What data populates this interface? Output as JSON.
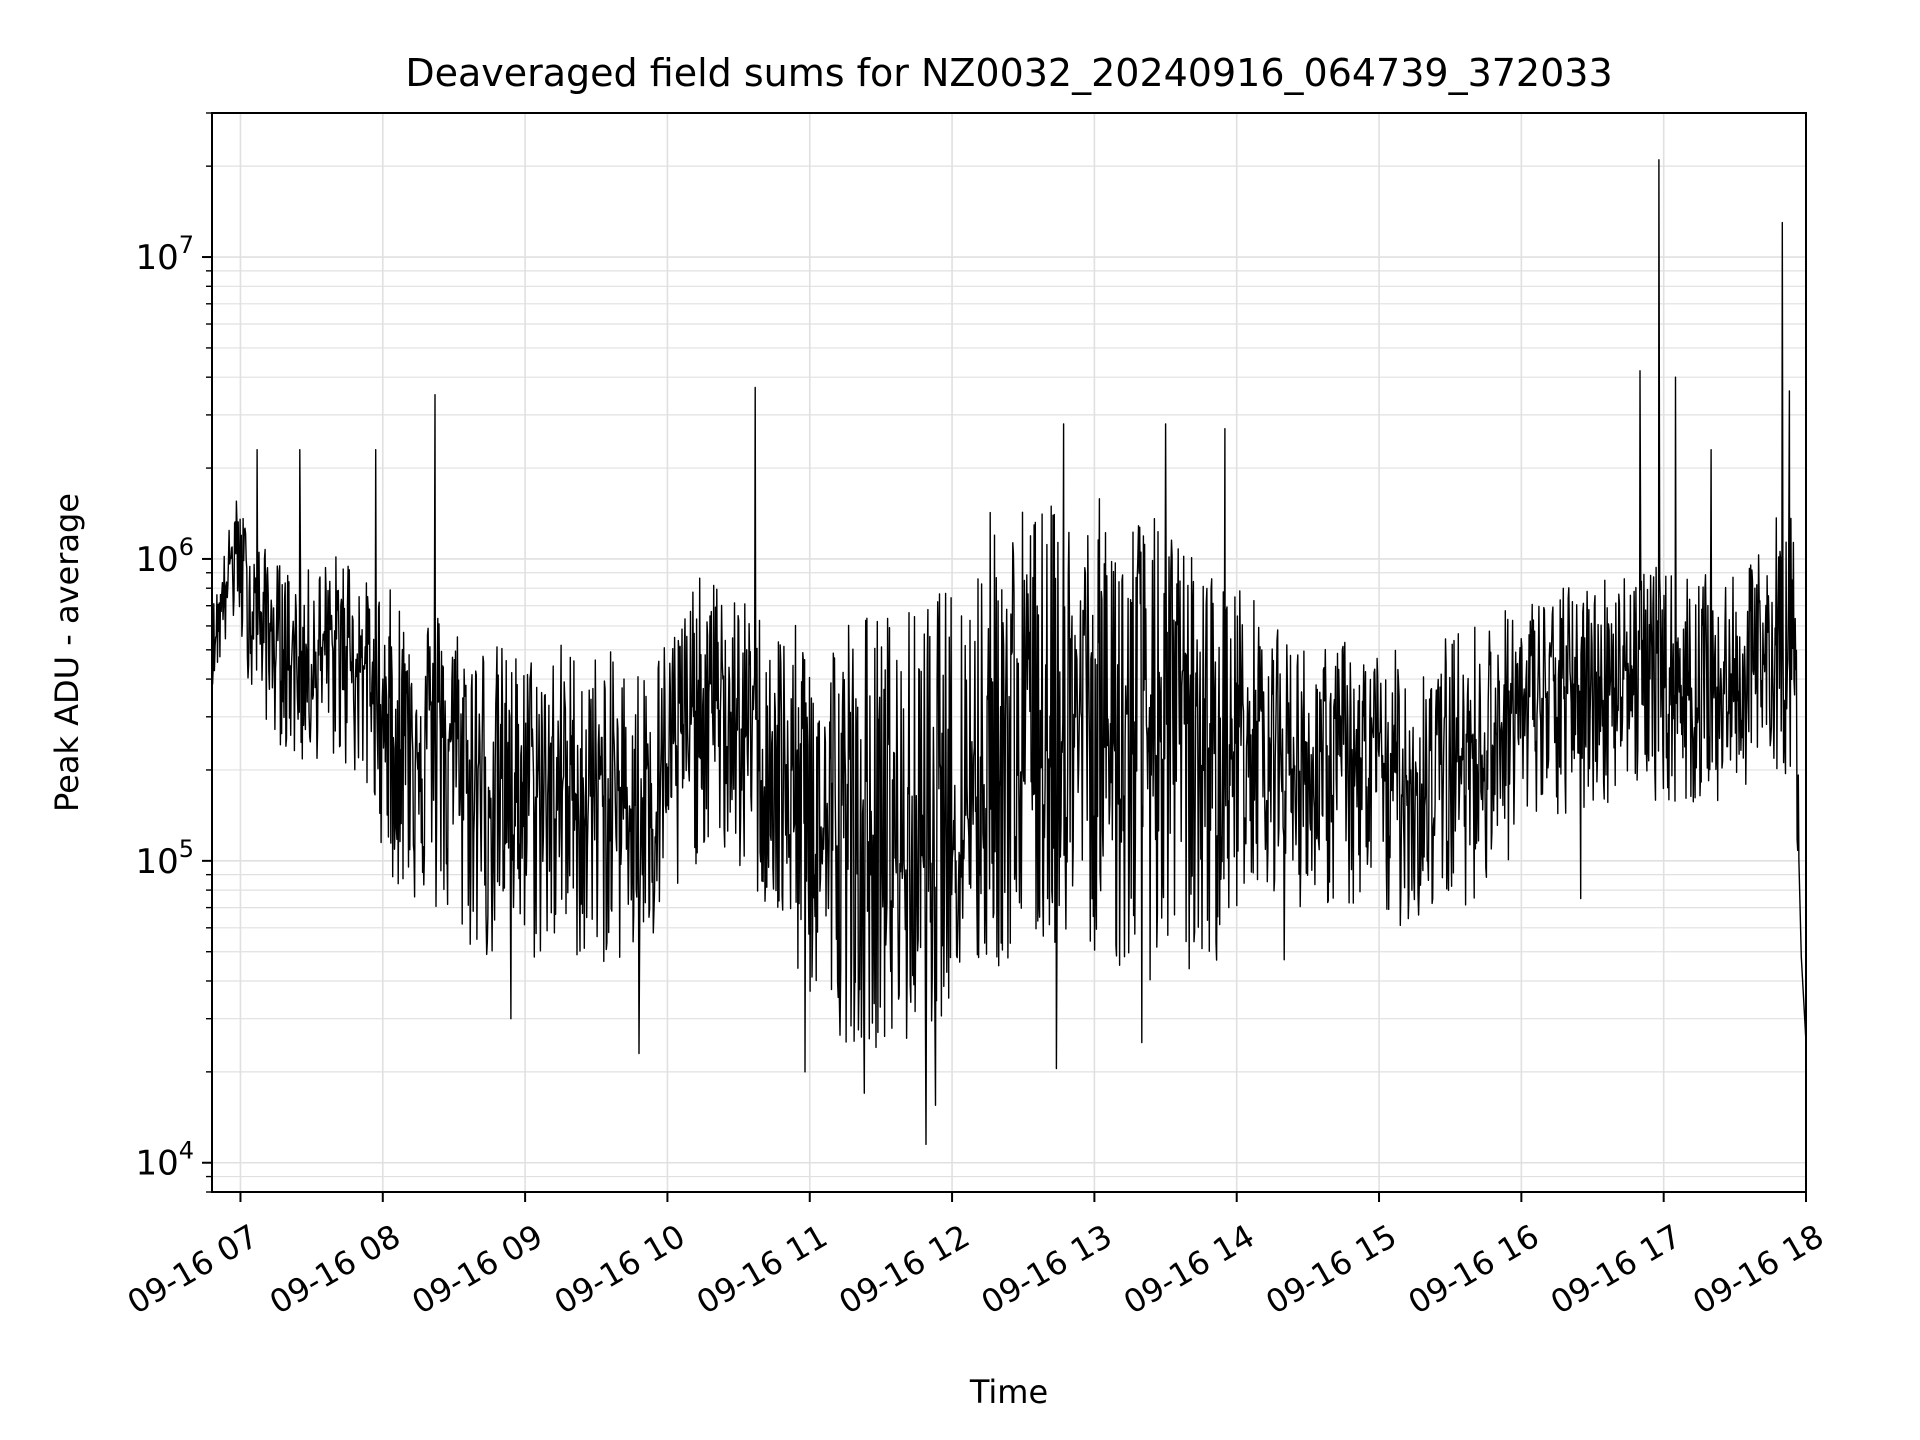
{
  "chart_data": {
    "type": "line",
    "title": "Deaveraged field sums for NZ0032_20240916_064739_372033",
    "xlabel": "Time",
    "ylabel": "Peak ADU - average",
    "yscale": "log",
    "ylim": [
      8000,
      30000000
    ],
    "xlim": [
      "2024-09-16 06:48",
      "2024-09-16 18:00"
    ],
    "grid": true,
    "legend": "none",
    "line_color": "#000000",
    "grid_color": "#e0e0e0",
    "x_ticks": [
      {
        "value": "2024-09-16 07:00",
        "label": "09-16 07"
      },
      {
        "value": "2024-09-16 08:00",
        "label": "09-16 08"
      },
      {
        "value": "2024-09-16 09:00",
        "label": "09-16 09"
      },
      {
        "value": "2024-09-16 10:00",
        "label": "09-16 10"
      },
      {
        "value": "2024-09-16 11:00",
        "label": "09-16 11"
      },
      {
        "value": "2024-09-16 12:00",
        "label": "09-16 12"
      },
      {
        "value": "2024-09-16 13:00",
        "label": "09-16 13"
      },
      {
        "value": "2024-09-16 14:00",
        "label": "09-16 14"
      },
      {
        "value": "2024-09-16 15:00",
        "label": "09-16 15"
      },
      {
        "value": "2024-09-16 16:00",
        "label": "09-16 16"
      },
      {
        "value": "2024-09-16 17:00",
        "label": "09-16 17"
      },
      {
        "value": "2024-09-16 18:00",
        "label": "09-16 18"
      }
    ],
    "y_ticks": [
      {
        "value": 10000,
        "base": "10",
        "exp": "4"
      },
      {
        "value": 100000,
        "base": "10",
        "exp": "5"
      },
      {
        "value": 1000000,
        "base": "10",
        "exp": "6"
      },
      {
        "value": 10000000,
        "base": "10",
        "exp": "7"
      }
    ],
    "series": [
      {
        "x": [
          "2024-09-16 06:48",
          "2024-09-16 06:58",
          "2024-09-16 07:05",
          "2024-09-16 07:15",
          "2024-09-16 07:25",
          "2024-09-16 07:35",
          "2024-09-16 07:45",
          "2024-09-16 07:55",
          "2024-09-16 08:05",
          "2024-09-16 08:15",
          "2024-09-16 08:25",
          "2024-09-16 08:35",
          "2024-09-16 08:45",
          "2024-09-16 08:55",
          "2024-09-16 09:05",
          "2024-09-16 09:15",
          "2024-09-16 09:25",
          "2024-09-16 09:35",
          "2024-09-16 09:45",
          "2024-09-16 09:55",
          "2024-09-16 10:05",
          "2024-09-16 10:15",
          "2024-09-16 10:25",
          "2024-09-16 10:35",
          "2024-09-16 10:45",
          "2024-09-16 10:55",
          "2024-09-16 11:05",
          "2024-09-16 11:15",
          "2024-09-16 11:25",
          "2024-09-16 11:35",
          "2024-09-16 11:45",
          "2024-09-16 11:55",
          "2024-09-16 12:05",
          "2024-09-16 12:15",
          "2024-09-16 12:25",
          "2024-09-16 12:35",
          "2024-09-16 12:45",
          "2024-09-16 12:55",
          "2024-09-16 13:05",
          "2024-09-16 13:15",
          "2024-09-16 13:25",
          "2024-09-16 13:35",
          "2024-09-16 13:45",
          "2024-09-16 13:55",
          "2024-09-16 14:05",
          "2024-09-16 14:15",
          "2024-09-16 14:25",
          "2024-09-16 14:35",
          "2024-09-16 14:45",
          "2024-09-16 14:55",
          "2024-09-16 15:05",
          "2024-09-16 15:15",
          "2024-09-16 15:25",
          "2024-09-16 15:35",
          "2024-09-16 15:45",
          "2024-09-16 15:55",
          "2024-09-16 16:05",
          "2024-09-16 16:15",
          "2024-09-16 16:25",
          "2024-09-16 16:35",
          "2024-09-16 16:45",
          "2024-09-16 16:55",
          "2024-09-16 17:05",
          "2024-09-16 17:15",
          "2024-09-16 17:25",
          "2024-09-16 17:35",
          "2024-09-16 17:45",
          "2024-09-16 17:55",
          "2024-09-16 18:00"
        ],
        "median": [
          500000,
          1200000,
          700000,
          550000,
          450000,
          500000,
          550000,
          400000,
          250000,
          300000,
          280000,
          200000,
          180000,
          190000,
          170000,
          180000,
          160000,
          170000,
          150000,
          180000,
          250000,
          350000,
          300000,
          250000,
          200000,
          150000,
          120000,
          110000,
          110000,
          100000,
          100000,
          120000,
          150000,
          200000,
          200000,
          220000,
          250000,
          300000,
          250000,
          250000,
          280000,
          300000,
          250000,
          200000,
          300000,
          250000,
          200000,
          200000,
          220000,
          200000,
          200000,
          180000,
          200000,
          220000,
          250000,
          300000,
          350000,
          350000,
          380000,
          400000,
          450000,
          400000,
          350000,
          400000,
          350000,
          400000,
          500000,
          400000,
          30000
        ],
        "upper": [
          700000,
          1600000,
          1200000,
          1000000,
          900000,
          1000000,
          1100000,
          800000,
          800000,
          700000,
          700000,
          600000,
          550000,
          500000,
          500000,
          550000,
          500000,
          500000,
          450000,
          500000,
          700000,
          900000,
          800000,
          700000,
          650000,
          600000,
          600000,
          700000,
          700000,
          700000,
          700000,
          800000,
          900000,
          1500000,
          1600000,
          1600000,
          1500000,
          1600000,
          1600000,
          1500000,
          1400000,
          1200000,
          1000000,
          900000,
          800000,
          600000,
          550000,
          500000,
          550000,
          500000,
          500000,
          500000,
          550000,
          600000,
          650000,
          700000,
          750000,
          800000,
          850000,
          900000,
          1000000,
          950000,
          900000,
          900000,
          850000,
          900000,
          1400000,
          1500000,
          50000
        ],
        "lower": [
          380000,
          600000,
          350000,
          250000,
          200000,
          220000,
          200000,
          150000,
          80000,
          70000,
          60000,
          50000,
          45000,
          45000,
          45000,
          50000,
          45000,
          45000,
          45000,
          50000,
          70000,
          110000,
          100000,
          80000,
          60000,
          40000,
          30000,
          25000,
          25000,
          22000,
          25000,
          30000,
          40000,
          40000,
          45000,
          50000,
          50000,
          55000,
          45000,
          40000,
          40000,
          40000,
          40000,
          50000,
          90000,
          80000,
          70000,
          70000,
          70000,
          60000,
          60000,
          60000,
          70000,
          70000,
          80000,
          100000,
          120000,
          130000,
          140000,
          150000,
          180000,
          160000,
          150000,
          150000,
          150000,
          180000,
          200000,
          180000,
          25000
        ],
        "spikes": [
          {
            "x": "2024-09-16 07:07",
            "y": 2300000
          },
          {
            "x": "2024-09-16 07:25",
            "y": 2300000
          },
          {
            "x": "2024-09-16 07:57",
            "y": 2300000
          },
          {
            "x": "2024-09-16 08:22",
            "y": 3500000
          },
          {
            "x": "2024-09-16 08:54",
            "y": 30000
          },
          {
            "x": "2024-09-16 09:48",
            "y": 23000
          },
          {
            "x": "2024-09-16 10:37",
            "y": 3700000
          },
          {
            "x": "2024-09-16 10:58",
            "y": 20000
          },
          {
            "x": "2024-09-16 11:23",
            "y": 17000
          },
          {
            "x": "2024-09-16 11:49",
            "y": 11500
          },
          {
            "x": "2024-09-16 11:53",
            "y": 15500
          },
          {
            "x": "2024-09-16 12:47",
            "y": 2800000
          },
          {
            "x": "2024-09-16 12:44",
            "y": 20500
          },
          {
            "x": "2024-09-16 13:20",
            "y": 25000
          },
          {
            "x": "2024-09-16 13:30",
            "y": 2800000
          },
          {
            "x": "2024-09-16 13:55",
            "y": 2700000
          },
          {
            "x": "2024-09-16 14:20",
            "y": 47000
          },
          {
            "x": "2024-09-16 16:25",
            "y": 75000
          },
          {
            "x": "2024-09-16 16:50",
            "y": 4200000
          },
          {
            "x": "2024-09-16 16:58",
            "y": 21000000
          },
          {
            "x": "2024-09-16 17:05",
            "y": 4000000
          },
          {
            "x": "2024-09-16 17:20",
            "y": 2300000
          },
          {
            "x": "2024-09-16 17:50",
            "y": 13000000
          },
          {
            "x": "2024-09-16 17:53",
            "y": 3600000
          }
        ]
      }
    ]
  }
}
